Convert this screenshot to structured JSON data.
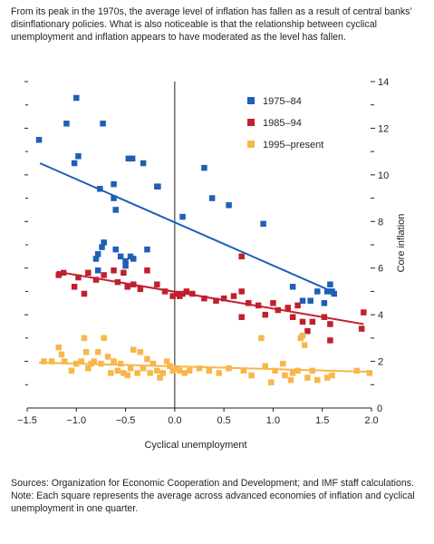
{
  "intro": "From its peak in the 1970s, the average level of inflation has fallen as a result of central banks’ disinflationary policies. What is also noticeable is that the relationship between cyclical unemployment and inflation appears to have moderated as the level has fallen.",
  "sources_line": "Sources: Organization for Economic Cooperation and Development; and IMF staff calculations.",
  "note_line": "Note: Each square represents the average across advanced economies of inflation and cyclical unemployment in one quarter.",
  "chart_data": {
    "type": "scatter",
    "title": "",
    "xlabel": "Cyclical unemployment",
    "ylabel": "Core inflation",
    "xlim": [
      -1.5,
      2.0
    ],
    "ylim": [
      0,
      14
    ],
    "x_ticks": [
      "−1.5",
      "−1.0",
      "−0.5",
      "0.0",
      "0.5",
      "1.0",
      "1.5",
      "2.0"
    ],
    "x_tick_values": [
      -1.5,
      -1.0,
      -0.5,
      0.0,
      0.5,
      1.0,
      1.5,
      2.0
    ],
    "y_ticks": [
      "0",
      "2",
      "4",
      "6",
      "8",
      "10",
      "12",
      "14"
    ],
    "y_tick_values": [
      0,
      2,
      4,
      6,
      8,
      10,
      12,
      14
    ],
    "y_axis_side": "right",
    "zero_line": "vertical at x = 0",
    "legend_position": "top-right inside plot",
    "grid": false,
    "series": [
      {
        "name": "1975–84",
        "color": "#1f5fb5",
        "trend": [
          [
            -1.37,
            10.5
          ],
          [
            1.6,
            5.0
          ]
        ],
        "points": [
          [
            -1.38,
            11.5
          ],
          [
            -1.1,
            12.2
          ],
          [
            -1.0,
            13.3
          ],
          [
            -0.98,
            10.8
          ],
          [
            -1.02,
            10.5
          ],
          [
            -0.73,
            12.2
          ],
          [
            -0.76,
            9.4
          ],
          [
            -0.62,
            9.6
          ],
          [
            -0.6,
            8.5
          ],
          [
            -0.62,
            9.0
          ],
          [
            -0.47,
            10.7
          ],
          [
            -0.43,
            10.7
          ],
          [
            -0.32,
            10.5
          ],
          [
            -0.18,
            9.5
          ],
          [
            -0.17,
            9.5
          ],
          [
            -0.78,
            6.6
          ],
          [
            -0.8,
            6.4
          ],
          [
            -0.74,
            6.9
          ],
          [
            -0.72,
            7.1
          ],
          [
            -0.6,
            6.8
          ],
          [
            -0.55,
            6.5
          ],
          [
            -0.5,
            6.3
          ],
          [
            -0.45,
            6.5
          ],
          [
            -0.5,
            6.1
          ],
          [
            -0.42,
            6.4
          ],
          [
            -0.28,
            6.8
          ],
          [
            -0.78,
            5.9
          ],
          [
            0.08,
            8.2
          ],
          [
            0.3,
            10.3
          ],
          [
            0.38,
            9.0
          ],
          [
            0.55,
            8.7
          ],
          [
            0.9,
            7.9
          ],
          [
            1.2,
            5.2
          ],
          [
            1.3,
            4.6
          ],
          [
            1.38,
            4.6
          ],
          [
            1.45,
            5.0
          ],
          [
            1.52,
            4.5
          ],
          [
            1.55,
            5.0
          ],
          [
            1.58,
            5.3
          ],
          [
            1.6,
            5.0
          ],
          [
            1.62,
            4.9
          ]
        ]
      },
      {
        "name": "1985–94",
        "color": "#c0202e",
        "trend": [
          [
            -1.2,
            5.85
          ],
          [
            1.92,
            3.6
          ]
        ],
        "points": [
          [
            -1.18,
            5.7
          ],
          [
            -1.13,
            5.8
          ],
          [
            -1.02,
            5.2
          ],
          [
            -0.98,
            5.6
          ],
          [
            -0.92,
            4.9
          ],
          [
            -0.88,
            5.8
          ],
          [
            -0.8,
            5.5
          ],
          [
            -0.72,
            5.7
          ],
          [
            -0.62,
            5.9
          ],
          [
            -0.58,
            5.4
          ],
          [
            -0.52,
            5.8
          ],
          [
            -0.48,
            5.2
          ],
          [
            -0.42,
            5.3
          ],
          [
            -0.35,
            5.1
          ],
          [
            -0.28,
            5.9
          ],
          [
            -0.18,
            5.3
          ],
          [
            -0.1,
            5.0
          ],
          [
            -0.02,
            4.8
          ],
          [
            0.02,
            4.9
          ],
          [
            0.05,
            4.8
          ],
          [
            0.08,
            4.9
          ],
          [
            0.12,
            5.0
          ],
          [
            0.18,
            4.9
          ],
          [
            0.3,
            4.7
          ],
          [
            0.42,
            4.6
          ],
          [
            0.5,
            4.7
          ],
          [
            0.6,
            4.8
          ],
          [
            0.68,
            5.0
          ],
          [
            0.68,
            6.5
          ],
          [
            0.68,
            3.9
          ],
          [
            0.75,
            4.5
          ],
          [
            0.85,
            4.4
          ],
          [
            0.92,
            4.0
          ],
          [
            1.0,
            4.5
          ],
          [
            1.05,
            4.2
          ],
          [
            1.15,
            4.3
          ],
          [
            1.2,
            3.9
          ],
          [
            1.25,
            4.4
          ],
          [
            1.3,
            3.7
          ],
          [
            1.35,
            3.3
          ],
          [
            1.4,
            3.7
          ],
          [
            1.52,
            3.9
          ],
          [
            1.58,
            3.6
          ],
          [
            1.58,
            2.9
          ],
          [
            1.9,
            3.4
          ],
          [
            1.92,
            4.1
          ]
        ]
      },
      {
        "name": "1995–present",
        "color": "#f9b649",
        "trend": [
          [
            -1.38,
            1.95
          ],
          [
            2.0,
            1.55
          ]
        ],
        "points": [
          [
            -1.33,
            2.0
          ],
          [
            -1.25,
            2.0
          ],
          [
            -1.18,
            2.6
          ],
          [
            -1.15,
            2.3
          ],
          [
            -1.12,
            2.0
          ],
          [
            -1.05,
            1.6
          ],
          [
            -1.0,
            1.9
          ],
          [
            -0.95,
            2.0
          ],
          [
            -0.92,
            3.0
          ],
          [
            -0.9,
            2.4
          ],
          [
            -0.88,
            1.7
          ],
          [
            -0.85,
            1.9
          ],
          [
            -0.82,
            2.0
          ],
          [
            -0.78,
            2.4
          ],
          [
            -0.75,
            1.9
          ],
          [
            -0.72,
            3.0
          ],
          [
            -0.68,
            2.2
          ],
          [
            -0.65,
            1.5
          ],
          [
            -0.62,
            2.0
          ],
          [
            -0.58,
            1.6
          ],
          [
            -0.55,
            1.9
          ],
          [
            -0.52,
            1.5
          ],
          [
            -0.48,
            1.4
          ],
          [
            -0.45,
            1.7
          ],
          [
            -0.42,
            2.5
          ],
          [
            -0.38,
            1.5
          ],
          [
            -0.35,
            2.4
          ],
          [
            -0.32,
            1.7
          ],
          [
            -0.28,
            2.1
          ],
          [
            -0.25,
            1.5
          ],
          [
            -0.22,
            1.9
          ],
          [
            -0.18,
            1.6
          ],
          [
            -0.15,
            1.3
          ],
          [
            -0.12,
            1.5
          ],
          [
            -0.08,
            2.0
          ],
          [
            -0.05,
            1.8
          ],
          [
            -0.02,
            1.6
          ],
          [
            0.02,
            1.7
          ],
          [
            0.05,
            1.6
          ],
          [
            0.1,
            1.5
          ],
          [
            0.15,
            1.6
          ],
          [
            0.25,
            1.7
          ],
          [
            0.35,
            1.6
          ],
          [
            0.45,
            1.5
          ],
          [
            0.55,
            1.7
          ],
          [
            0.7,
            1.6
          ],
          [
            0.78,
            1.4
          ],
          [
            0.88,
            3.0
          ],
          [
            0.92,
            1.8
          ],
          [
            0.98,
            1.1
          ],
          [
            1.02,
            1.6
          ],
          [
            1.1,
            1.9
          ],
          [
            1.12,
            1.4
          ],
          [
            1.18,
            1.2
          ],
          [
            1.2,
            1.5
          ],
          [
            1.25,
            1.6
          ],
          [
            1.28,
            3.0
          ],
          [
            1.3,
            3.1
          ],
          [
            1.32,
            2.7
          ],
          [
            1.35,
            1.3
          ],
          [
            1.4,
            1.6
          ],
          [
            1.45,
            1.2
          ],
          [
            1.55,
            1.3
          ],
          [
            1.6,
            1.4
          ],
          [
            1.85,
            1.6
          ],
          [
            1.98,
            1.5
          ]
        ]
      }
    ]
  }
}
